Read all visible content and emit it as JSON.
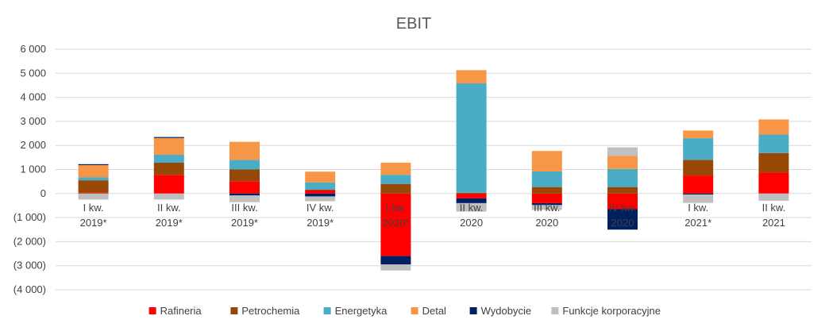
{
  "chart_data": {
    "type": "bar",
    "stacked": true,
    "title": "EBIT",
    "xlabel": "",
    "ylabel": "",
    "ylim": [
      -4000,
      6000
    ],
    "yticks": [
      6000,
      5000,
      4000,
      3000,
      2000,
      1000,
      0,
      -1000,
      -2000,
      -3000,
      -4000
    ],
    "ytick_labels": [
      "6 000",
      "5 000",
      "4 000",
      "3 000",
      "2 000",
      "1 000",
      "0",
      "(1 000)",
      "(2 000)",
      "(3 000)",
      "(4 000)"
    ],
    "grid": true,
    "legend_position": "bottom",
    "categories": [
      [
        "I kw.",
        "2019*"
      ],
      [
        "II kw.",
        "2019*"
      ],
      [
        "III kw.",
        "2019*"
      ],
      [
        "IV kw.",
        "2019*"
      ],
      [
        "I kw.",
        "2020*"
      ],
      [
        "II kw.",
        "2020"
      ],
      [
        "III kw.",
        "2020"
      ],
      [
        "IV kw.",
        "2020"
      ],
      [
        "I kw.",
        "2021*"
      ],
      [
        "II kw.",
        "2021"
      ]
    ],
    "series": [
      {
        "name": "Rafineria",
        "color": "#ff0000",
        "values": [
          30,
          780,
          500,
          140,
          -2600,
          -200,
          -400,
          -650,
          750,
          880
        ]
      },
      {
        "name": "Petrochemia",
        "color": "#974706",
        "values": [
          520,
          500,
          500,
          20,
          400,
          30,
          270,
          270,
          650,
          800
        ]
      },
      {
        "name": "Energetyka",
        "color": "#4bacc6",
        "values": [
          130,
          330,
          400,
          300,
          380,
          4550,
          650,
          750,
          900,
          770
        ]
      },
      {
        "name": "Detal",
        "color": "#f79646",
        "values": [
          500,
          700,
          750,
          450,
          500,
          550,
          850,
          550,
          320,
          630
        ]
      },
      {
        "name": "Wydobycie",
        "color": "#002060",
        "values": [
          40,
          40,
          -80,
          -120,
          -350,
          -200,
          -80,
          -850,
          -40,
          0
        ]
      },
      {
        "name": "Funkcje korporacyjne",
        "color": "#bfbfbf",
        "values": [
          -250,
          -250,
          -280,
          -200,
          -250,
          -350,
          -200,
          350,
          -350,
          -300
        ]
      }
    ]
  }
}
